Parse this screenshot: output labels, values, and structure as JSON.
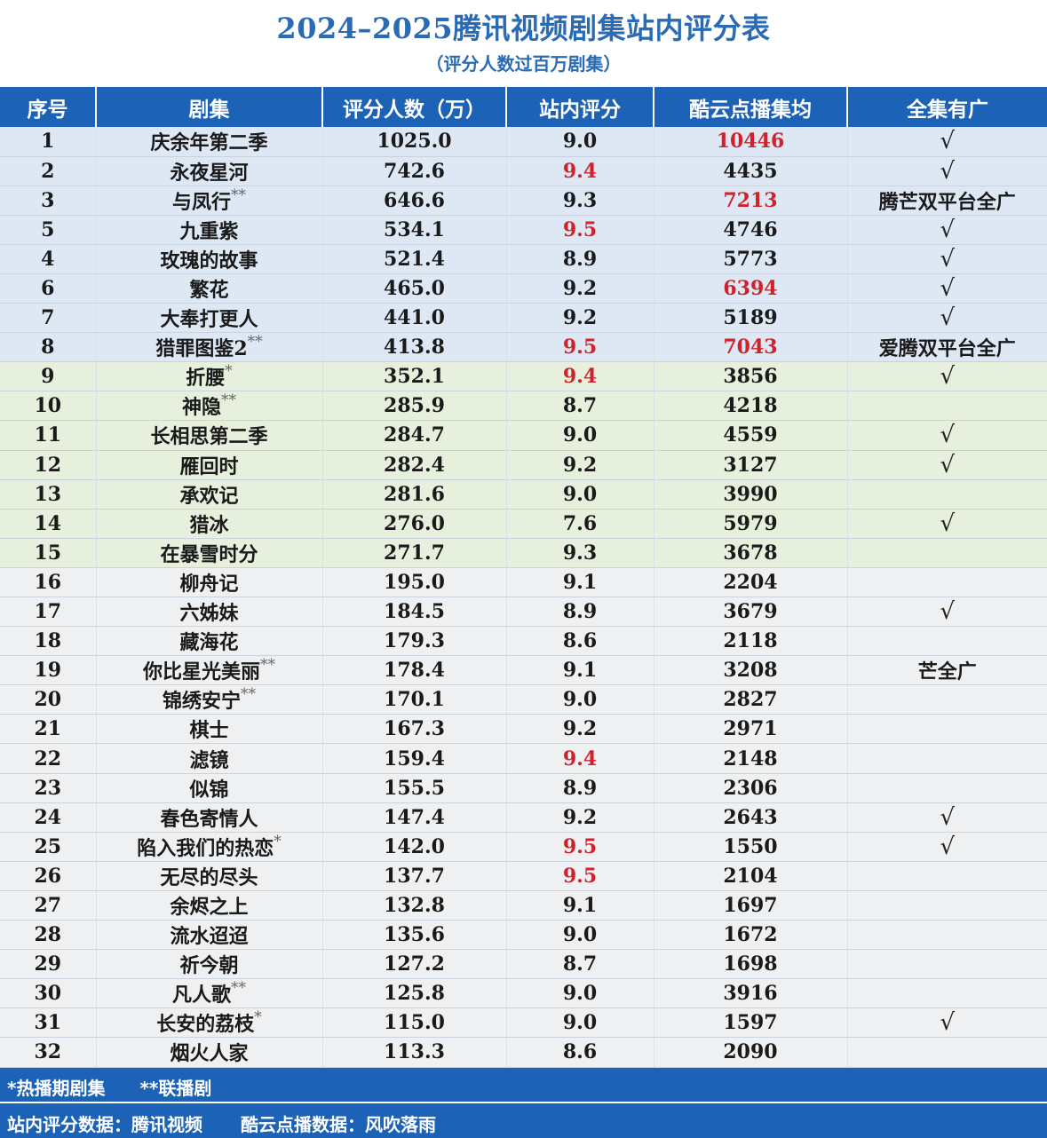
{
  "title": "2024–2025腾讯视频剧集站内评分表",
  "subtitle": "（评分人数过百万剧集）",
  "headers": [
    "序号",
    "剧集",
    "评分人数（万）",
    "站内评分",
    "酷云点播集均",
    "全集有广"
  ],
  "rows": [
    {
      "no": "1",
      "name": "庆余年第二季",
      "mark": "",
      "count": "1025.0",
      "score": "9.0",
      "score_red": false,
      "avg": "10446",
      "avg_red": true,
      "ad": "√",
      "group": "blue"
    },
    {
      "no": "2",
      "name": "永夜星河",
      "mark": "",
      "count": "742.6",
      "score": "9.4",
      "score_red": true,
      "avg": "4435",
      "avg_red": false,
      "ad": "√",
      "group": "blue"
    },
    {
      "no": "3",
      "name": "与凤行",
      "mark": "**",
      "count": "646.6",
      "score": "9.3",
      "score_red": false,
      "avg": "7213",
      "avg_red": true,
      "ad": "腾芒双平台全广",
      "group": "blue"
    },
    {
      "no": "5",
      "name": "九重紫",
      "mark": "",
      "count": "534.1",
      "score": "9.5",
      "score_red": true,
      "avg": "4746",
      "avg_red": false,
      "ad": "√",
      "group": "blue"
    },
    {
      "no": "4",
      "name": "玫瑰的故事",
      "mark": "",
      "count": "521.4",
      "score": "8.9",
      "score_red": false,
      "avg": "5773",
      "avg_red": false,
      "ad": "√",
      "group": "blue"
    },
    {
      "no": "6",
      "name": "繁花",
      "mark": "",
      "count": "465.0",
      "score": "9.2",
      "score_red": false,
      "avg": "6394",
      "avg_red": true,
      "ad": "√",
      "group": "blue"
    },
    {
      "no": "7",
      "name": "大奉打更人",
      "mark": "",
      "count": "441.0",
      "score": "9.2",
      "score_red": false,
      "avg": "5189",
      "avg_red": false,
      "ad": "√",
      "group": "blue"
    },
    {
      "no": "8",
      "name": "猎罪图鉴2",
      "mark": "**",
      "count": "413.8",
      "score": "9.5",
      "score_red": true,
      "avg": "7043",
      "avg_red": true,
      "ad": "爱腾双平台全广",
      "group": "blue"
    },
    {
      "no": "9",
      "name": "折腰",
      "mark": "*",
      "count": "352.1",
      "score": "9.4",
      "score_red": true,
      "avg": "3856",
      "avg_red": false,
      "ad": "√",
      "group": "green"
    },
    {
      "no": "10",
      "name": "神隐",
      "mark": "**",
      "count": "285.9",
      "score": "8.7",
      "score_red": false,
      "avg": "4218",
      "avg_red": false,
      "ad": "",
      "group": "green"
    },
    {
      "no": "11",
      "name": "长相思第二季",
      "mark": "",
      "count": "284.7",
      "score": "9.0",
      "score_red": false,
      "avg": "4559",
      "avg_red": false,
      "ad": "√",
      "group": "green"
    },
    {
      "no": "12",
      "name": "雁回时",
      "mark": "",
      "count": "282.4",
      "score": "9.2",
      "score_red": false,
      "avg": "3127",
      "avg_red": false,
      "ad": "√",
      "group": "green"
    },
    {
      "no": "13",
      "name": "承欢记",
      "mark": "",
      "count": "281.6",
      "score": "9.0",
      "score_red": false,
      "avg": "3990",
      "avg_red": false,
      "ad": "",
      "group": "green"
    },
    {
      "no": "14",
      "name": "猎冰",
      "mark": "",
      "count": "276.0",
      "score": "7.6",
      "score_red": false,
      "avg": "5979",
      "avg_red": false,
      "ad": "√",
      "group": "green"
    },
    {
      "no": "15",
      "name": "在暴雪时分",
      "mark": "",
      "count": "271.7",
      "score": "9.3",
      "score_red": false,
      "avg": "3678",
      "avg_red": false,
      "ad": "",
      "group": "green"
    },
    {
      "no": "16",
      "name": "柳舟记",
      "mark": "",
      "count": "195.0",
      "score": "9.1",
      "score_red": false,
      "avg": "2204",
      "avg_red": false,
      "ad": "",
      "group": "gray"
    },
    {
      "no": "17",
      "name": "六姊妹",
      "mark": "",
      "count": "184.5",
      "score": "8.9",
      "score_red": false,
      "avg": "3679",
      "avg_red": false,
      "ad": "√",
      "group": "gray"
    },
    {
      "no": "18",
      "name": "藏海花",
      "mark": "",
      "count": "179.3",
      "score": "8.6",
      "score_red": false,
      "avg": "2118",
      "avg_red": false,
      "ad": "",
      "group": "gray"
    },
    {
      "no": "19",
      "name": "你比星光美丽",
      "mark": "**",
      "count": "178.4",
      "score": "9.1",
      "score_red": false,
      "avg": "3208",
      "avg_red": false,
      "ad": "芒全广",
      "group": "gray"
    },
    {
      "no": "20",
      "name": "锦绣安宁",
      "mark": "**",
      "count": "170.1",
      "score": "9.0",
      "score_red": false,
      "avg": "2827",
      "avg_red": false,
      "ad": "",
      "group": "gray"
    },
    {
      "no": "21",
      "name": "棋士",
      "mark": "",
      "count": "167.3",
      "score": "9.2",
      "score_red": false,
      "avg": "2971",
      "avg_red": false,
      "ad": "",
      "group": "gray"
    },
    {
      "no": "22",
      "name": "滤镜",
      "mark": "",
      "count": "159.4",
      "score": "9.4",
      "score_red": true,
      "avg": "2148",
      "avg_red": false,
      "ad": "",
      "group": "gray"
    },
    {
      "no": "23",
      "name": "似锦",
      "mark": "",
      "count": "155.5",
      "score": "8.9",
      "score_red": false,
      "avg": "2306",
      "avg_red": false,
      "ad": "",
      "group": "gray"
    },
    {
      "no": "24",
      "name": "春色寄情人",
      "mark": "",
      "count": "147.4",
      "score": "9.2",
      "score_red": false,
      "avg": "2643",
      "avg_red": false,
      "ad": "√",
      "group": "gray"
    },
    {
      "no": "25",
      "name": "陷入我们的热恋",
      "mark": "*",
      "count": "142.0",
      "score": "9.5",
      "score_red": true,
      "avg": "1550",
      "avg_red": false,
      "ad": "√",
      "group": "gray"
    },
    {
      "no": "26",
      "name": "无尽的尽头",
      "mark": "",
      "count": "137.7",
      "score": "9.5",
      "score_red": true,
      "avg": "2104",
      "avg_red": false,
      "ad": "",
      "group": "gray"
    },
    {
      "no": "27",
      "name": "余烬之上",
      "mark": "",
      "count": "132.8",
      "score": "9.1",
      "score_red": false,
      "avg": "1697",
      "avg_red": false,
      "ad": "",
      "group": "gray"
    },
    {
      "no": "28",
      "name": "流水迢迢",
      "mark": "",
      "count": "135.6",
      "score": "9.0",
      "score_red": false,
      "avg": "1672",
      "avg_red": false,
      "ad": "",
      "group": "gray"
    },
    {
      "no": "29",
      "name": "祈今朝",
      "mark": "",
      "count": "127.2",
      "score": "8.7",
      "score_red": false,
      "avg": "1698",
      "avg_red": false,
      "ad": "",
      "group": "gray"
    },
    {
      "no": "30",
      "name": "凡人歌",
      "mark": "**",
      "count": "125.8",
      "score": "9.0",
      "score_red": false,
      "avg": "3916",
      "avg_red": false,
      "ad": "",
      "group": "gray"
    },
    {
      "no": "31",
      "name": "长安的荔枝",
      "mark": "*",
      "count": "115.0",
      "score": "9.0",
      "score_red": false,
      "avg": "1597",
      "avg_red": false,
      "ad": "√",
      "group": "gray"
    },
    {
      "no": "32",
      "name": "烟火人家",
      "mark": "",
      "count": "113.3",
      "score": "8.6",
      "score_red": false,
      "avg": "2090",
      "avg_red": false,
      "ad": "",
      "group": "gray"
    }
  ],
  "footer": {
    "legend_single": "*热播期剧集",
    "legend_double": "**联播剧",
    "source_score": "站内评分数据：腾讯视频",
    "source_kuyun": "酷云点播数据：风吹落雨"
  },
  "colors": {
    "title": "#2a6bb5",
    "header_bg": "#1c63b8",
    "highlight_red": "#d0222b",
    "group_blue": "#dde8f4",
    "group_green": "#e6f0dc",
    "group_gray": "#eef0f2"
  }
}
